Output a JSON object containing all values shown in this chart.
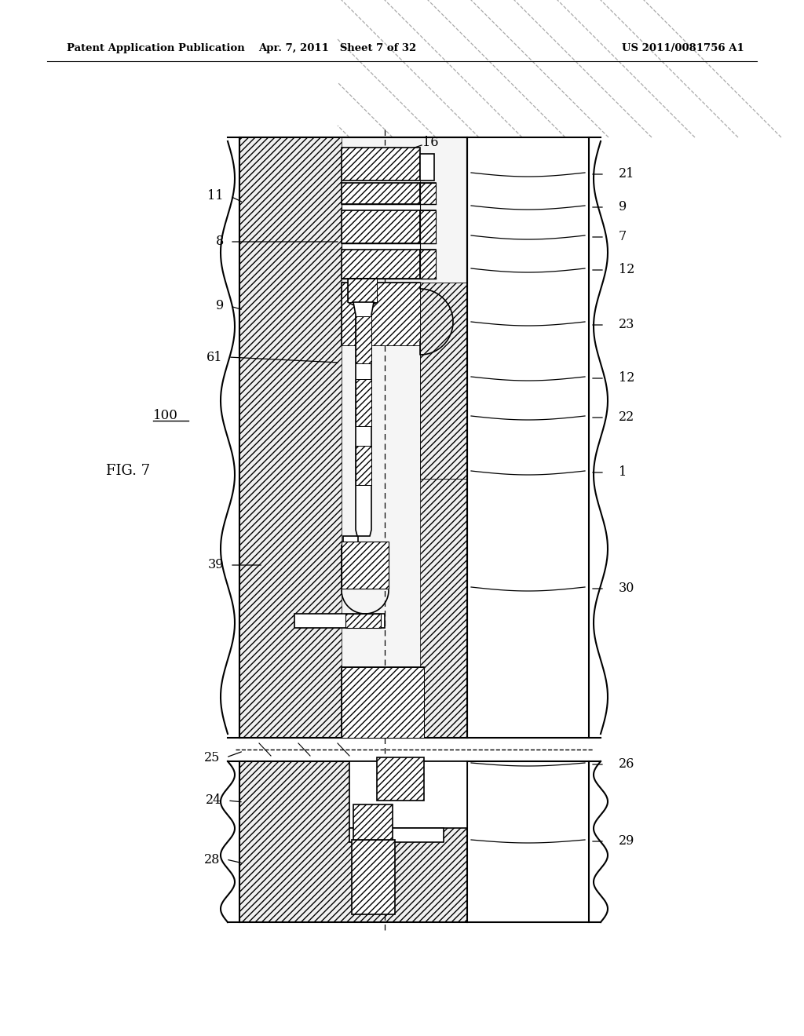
{
  "header_left": "Patent Application Publication",
  "header_center": "Apr. 7, 2011   Sheet 7 of 32",
  "header_right": "US 2011/0081756 A1",
  "fig_label": "FIG. 7",
  "device_label": "100",
  "bg_color": "#ffffff"
}
